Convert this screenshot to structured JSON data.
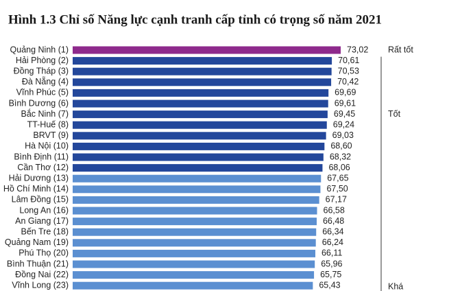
{
  "chart_data": {
    "type": "bar",
    "orientation": "horizontal",
    "title": "Hình 1.3 Chỉ số Năng lực cạnh tranh cấp tỉnh có trọng số năm 2021",
    "series": [
      {
        "name": "Rất tốt",
        "color": "#8e2a8c",
        "categories": [
          "Quảng Ninh (1)"
        ],
        "values": [
          73.02
        ],
        "value_labels": [
          "73,02"
        ]
      },
      {
        "name": "Tốt",
        "color": "#23479b",
        "categories": [
          "Hải Phòng (2)",
          "Đồng Tháp (3)",
          "Đà Nẵng (4)",
          "Vĩnh Phúc (5)",
          "Bình Dương (6)",
          "Bắc Ninh (7)",
          "TT-Huế (8)",
          "BRVT (9)",
          "Hà Nội (10)",
          "Bình Định (11)",
          "Cần Thơ (12)"
        ],
        "values": [
          70.61,
          70.53,
          70.42,
          69.69,
          69.61,
          69.45,
          69.24,
          69.03,
          68.6,
          68.32,
          68.06
        ],
        "value_labels": [
          "70,61",
          "70,53",
          "70,42",
          "69,69",
          "69,61",
          "69,45",
          "69,24",
          "69,03",
          "68,60",
          "68,32",
          "68,06"
        ]
      },
      {
        "name": "Khá",
        "color": "#5b8fd1",
        "categories": [
          "Hải Dương (13)",
          "Hồ Chí Minh (14)",
          "Lâm Đồng (15)",
          "Long An (16)",
          "An Giang (17)",
          "Bến Tre (18)",
          "Quảng Nam (19)",
          "Phú Thọ (20)",
          "Bình Thuận (21)",
          "Đồng Nai (22)",
          "Vĩnh Long (23)"
        ],
        "values": [
          67.65,
          67.5,
          67.17,
          66.58,
          66.48,
          66.34,
          66.24,
          66.11,
          65.96,
          65.75,
          65.43
        ],
        "value_labels": [
          "67,65",
          "67,50",
          "67,17",
          "66,58",
          "66,48",
          "66,34",
          "66,24",
          "66,11",
          "65,96",
          "65,75",
          "65,43"
        ]
      }
    ]
  }
}
